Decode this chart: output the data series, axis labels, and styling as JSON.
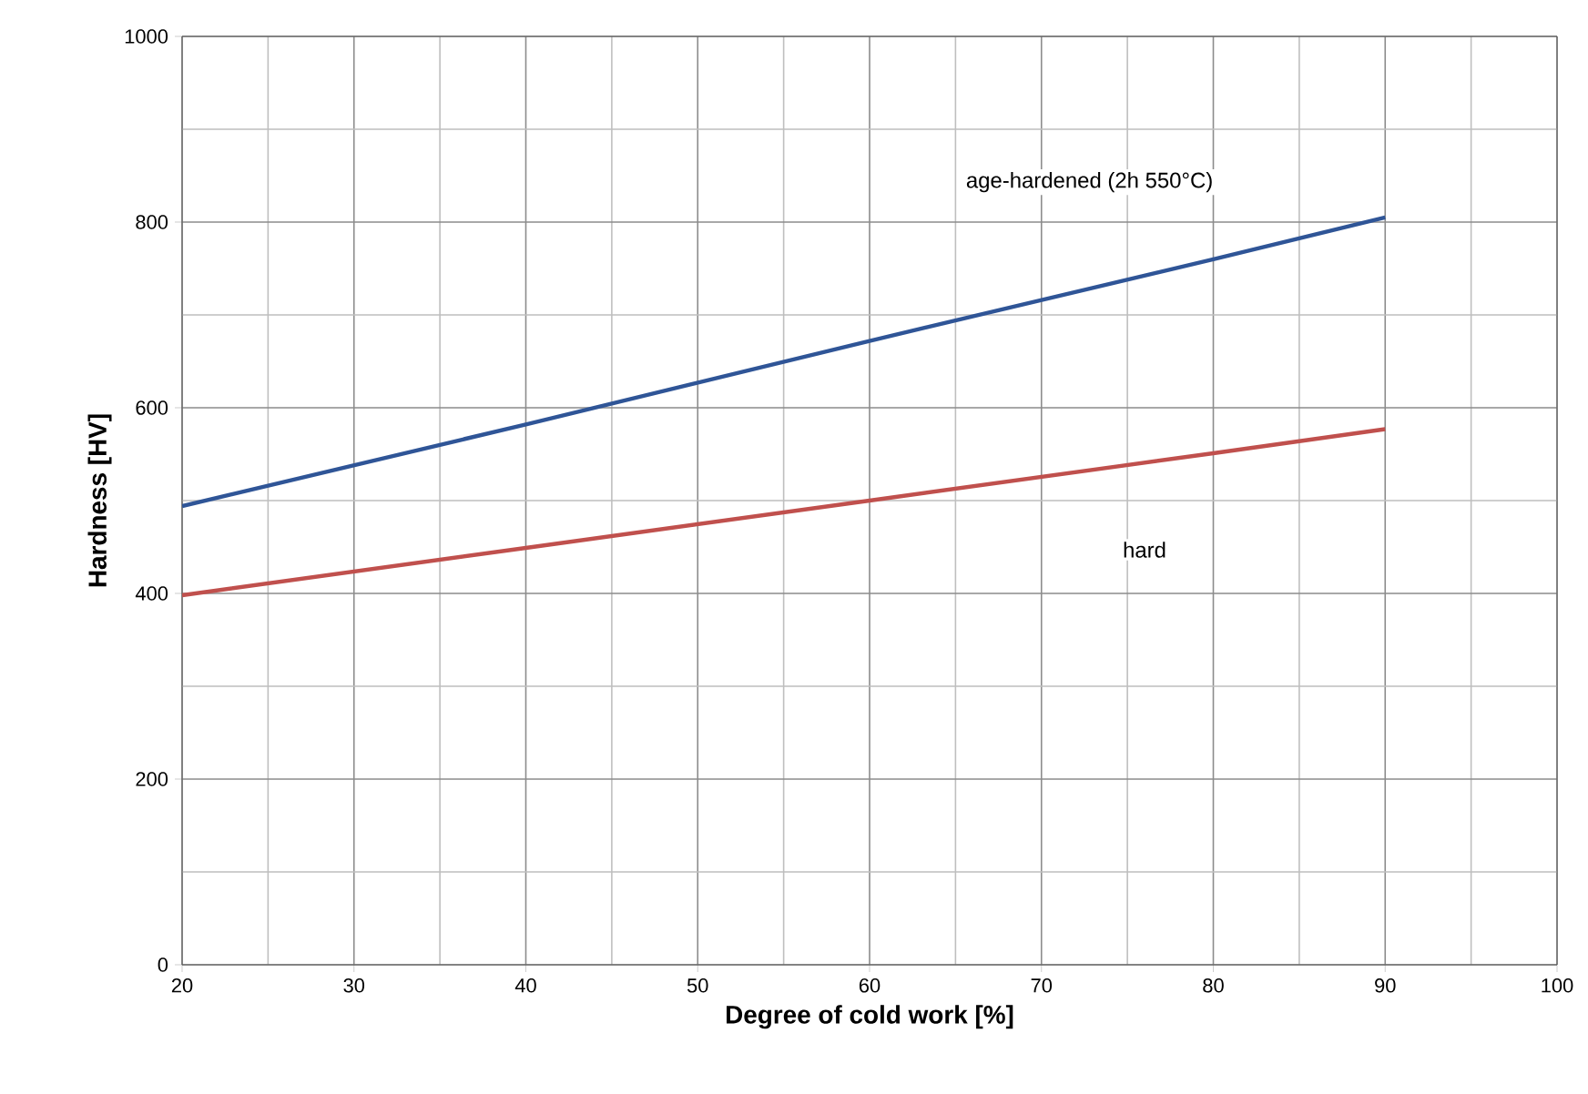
{
  "chart_data": {
    "type": "line",
    "xlabel": "Degree of cold work [%]",
    "ylabel": "Hardness [HV]",
    "x": [
      20,
      40,
      60,
      80,
      90
    ],
    "series": [
      {
        "color": "#2f5597",
        "values": [
          494,
          582,
          672,
          760,
          805
        ]
      },
      {
        "color": "#c0504d",
        "values": [
          398,
          449,
          500,
          551,
          577
        ]
      }
    ],
    "xlim": [
      20,
      100
    ],
    "ylim": [
      0,
      1000
    ],
    "xticks": [
      20,
      30,
      40,
      50,
      60,
      70,
      80,
      90,
      100
    ],
    "yticks": [
      0,
      200,
      400,
      600,
      800,
      1000
    ],
    "grid": true,
    "marker": "none",
    "line_style": "solid",
    "annotations": [
      "age-hardened (2h 550°C)",
      "hard"
    ]
  }
}
